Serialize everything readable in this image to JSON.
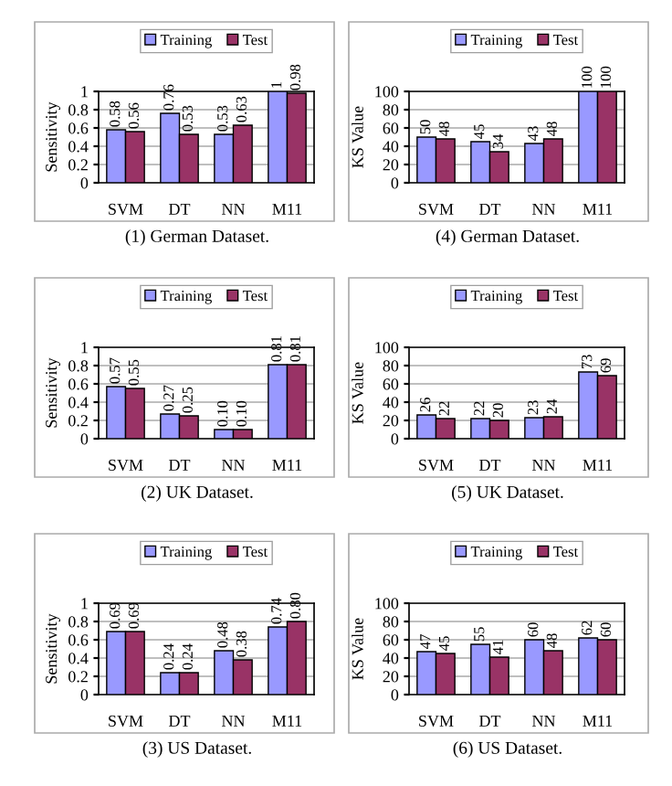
{
  "chart_data": [
    {
      "type": "bar",
      "categories": [
        "SVM",
        "DT",
        "NN",
        "M11"
      ],
      "ylabel": "Sensitivity",
      "ylim": [
        0,
        1
      ],
      "yticks": [
        0,
        0.2,
        0.4,
        0.6,
        0.8,
        1
      ],
      "grid": "y",
      "legend": "top",
      "data_labels": true,
      "annotations": [
        "(1) German Dataset."
      ],
      "series": [
        {
          "name": "Training",
          "color": "#9999ff",
          "values": [
            0.58,
            0.76,
            0.53,
            1
          ]
        },
        {
          "name": "Test",
          "color": "#993366",
          "values": [
            0.56,
            0.53,
            0.63,
            0.98
          ]
        }
      ]
    },
    {
      "type": "bar",
      "categories": [
        "SVM",
        "DT",
        "NN",
        "M11"
      ],
      "ylabel": "KS Value",
      "ylim": [
        0,
        100
      ],
      "yticks": [
        0,
        20,
        40,
        60,
        80,
        100
      ],
      "grid": "y",
      "legend": "top",
      "data_labels": true,
      "annotations": [
        "(4) German Dataset."
      ],
      "series": [
        {
          "name": "Training",
          "color": "#9999ff",
          "values": [
            50,
            45,
            43,
            100
          ]
        },
        {
          "name": "Test",
          "color": "#993366",
          "values": [
            48,
            34,
            48,
            100
          ]
        }
      ]
    },
    {
      "type": "bar",
      "categories": [
        "SVM",
        "DT",
        "NN",
        "M11"
      ],
      "ylabel": "Sensitivity",
      "ylim": [
        0,
        1
      ],
      "yticks": [
        0,
        0.2,
        0.4,
        0.6,
        0.8,
        1
      ],
      "grid": "y",
      "legend": "top",
      "annotations": [
        "(2) UK Dataset."
      ],
      "series": [
        {
          "name": "Training",
          "color": "#9999ff",
          "values": [
            0.57,
            0.27,
            0.1,
            0.81
          ],
          "value_labels": [
            "0.57",
            "0.27",
            "0.10",
            "0.81"
          ]
        },
        {
          "name": "Test",
          "color": "#993366",
          "values": [
            0.55,
            0.25,
            0.1,
            0.81
          ],
          "value_labels": [
            "0.55",
            "0.25",
            "0.10",
            "0.81"
          ]
        }
      ]
    },
    {
      "type": "bar",
      "categories": [
        "SVM",
        "DT",
        "NN",
        "M11"
      ],
      "ylabel": "KS Value",
      "ylim": [
        0,
        100
      ],
      "yticks": [
        0,
        20,
        40,
        60,
        80,
        100
      ],
      "grid": "y",
      "legend": "top",
      "data_labels": true,
      "annotations": [
        "(5) UK Dataset."
      ],
      "series": [
        {
          "name": "Training",
          "color": "#9999ff",
          "values": [
            26,
            22,
            23,
            73
          ]
        },
        {
          "name": "Test",
          "color": "#993366",
          "values": [
            22,
            20,
            24,
            69
          ]
        }
      ]
    },
    {
      "type": "bar",
      "categories": [
        "SVM",
        "DT",
        "NN",
        "M11"
      ],
      "ylabel": "Sensitivity",
      "ylim": [
        0,
        1
      ],
      "yticks": [
        0,
        0.2,
        0.4,
        0.6,
        0.8,
        1
      ],
      "grid": "y",
      "legend": "top",
      "annotations": [
        "(3) US Dataset."
      ],
      "series": [
        {
          "name": "Training",
          "color": "#9999ff",
          "values": [
            0.69,
            0.24,
            0.48,
            0.74
          ],
          "value_labels": [
            "0.69",
            "0.24",
            "0.48",
            "0.74"
          ]
        },
        {
          "name": "Test",
          "color": "#993366",
          "values": [
            0.69,
            0.24,
            0.38,
            0.8
          ],
          "value_labels": [
            "0.69",
            "0.24",
            "0.38",
            "0.80"
          ]
        }
      ]
    },
    {
      "type": "bar",
      "categories": [
        "SVM",
        "DT",
        "NN",
        "M11"
      ],
      "ylabel": "KS Value",
      "ylim": [
        0,
        100
      ],
      "yticks": [
        0,
        20,
        40,
        60,
        80,
        100
      ],
      "grid": "y",
      "legend": "top",
      "data_labels": true,
      "annotations": [
        "(6) US Dataset."
      ],
      "series": [
        {
          "name": "Training",
          "color": "#9999ff",
          "values": [
            47,
            55,
            60,
            62
          ]
        },
        {
          "name": "Test",
          "color": "#993366",
          "values": [
            45,
            41,
            48,
            60
          ]
        }
      ]
    }
  ]
}
